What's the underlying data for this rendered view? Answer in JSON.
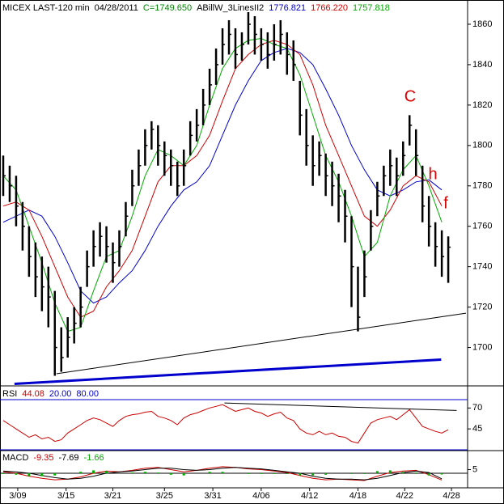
{
  "chart_data": [
    {
      "type": "ohlc",
      "title": "MICEX LAST-120 min",
      "subtitle": "04/28/2011",
      "last_label": "C=1749.650",
      "last_color": "#008800",
      "indicator": "ABillW_3LinesII2",
      "color": "#000000",
      "x": [
        0,
        1,
        2,
        3,
        4,
        5,
        6,
        7,
        8,
        9,
        10,
        11,
        12,
        13,
        14,
        15,
        16,
        17,
        18,
        19,
        20,
        21,
        22,
        23,
        24,
        25,
        26,
        27,
        28,
        29,
        30,
        31,
        32,
        33,
        34,
        35,
        36,
        37,
        38,
        39,
        40,
        41,
        42,
        43,
        44,
        45,
        46,
        47,
        48,
        49,
        50,
        51,
        52,
        53,
        54,
        55,
        56,
        57,
        58,
        59,
        60,
        61,
        62,
        63,
        64,
        65,
        66,
        67,
        68,
        69
      ],
      "high": [
        1795,
        1790,
        1785,
        1772,
        1760,
        1752,
        1745,
        1740,
        1728,
        1710,
        1715,
        1720,
        1730,
        1748,
        1758,
        1762,
        1760,
        1752,
        1758,
        1772,
        1788,
        1798,
        1808,
        1812,
        1810,
        1802,
        1798,
        1792,
        1798,
        1812,
        1818,
        1828,
        1838,
        1848,
        1858,
        1862,
        1858,
        1856,
        1866,
        1864,
        1858,
        1856,
        1860,
        1862,
        1856,
        1852,
        1832,
        1818,
        1805,
        1802,
        1796,
        1792,
        1786,
        1778,
        1765,
        1740,
        1748,
        1768,
        1782,
        1790,
        1798,
        1794,
        1802,
        1815,
        1808,
        1790,
        1775,
        1762,
        1758,
        1755
      ],
      "low": [
        1775,
        1772,
        1760,
        1748,
        1735,
        1725,
        1718,
        1710,
        1686,
        1688,
        1695,
        1702,
        1710,
        1730,
        1740,
        1745,
        1742,
        1732,
        1740,
        1755,
        1770,
        1780,
        1790,
        1798,
        1790,
        1785,
        1780,
        1775,
        1780,
        1795,
        1802,
        1810,
        1820,
        1830,
        1840,
        1845,
        1838,
        1842,
        1850,
        1845,
        1842,
        1838,
        1842,
        1845,
        1835,
        1832,
        1805,
        1790,
        1780,
        1785,
        1775,
        1770,
        1762,
        1752,
        1720,
        1708,
        1725,
        1748,
        1765,
        1775,
        1780,
        1775,
        1785,
        1800,
        1785,
        1762,
        1750,
        1740,
        1735,
        1732
      ],
      "values": [
        1785,
        1780,
        1770,
        1760,
        1745,
        1735,
        1730,
        1725,
        1700,
        1695,
        1705,
        1712,
        1720,
        1740,
        1750,
        1755,
        1750,
        1742,
        1750,
        1765,
        1780,
        1790,
        1800,
        1808,
        1800,
        1795,
        1790,
        1780,
        1790,
        1805,
        1810,
        1820,
        1830,
        1840,
        1850,
        1855,
        1845,
        1850,
        1860,
        1855,
        1850,
        1845,
        1850,
        1855,
        1845,
        1840,
        1815,
        1800,
        1790,
        1795,
        1785,
        1780,
        1775,
        1765,
        1740,
        1715,
        1735,
        1760,
        1775,
        1785,
        1790,
        1785,
        1795,
        1810,
        1795,
        1770,
        1760,
        1750,
        1745,
        1749.65
      ],
      "series": [
        {
          "name": "1776.821",
          "color": "#0000cc",
          "x": [
            0,
            2,
            4,
            6,
            8,
            10,
            12,
            14,
            16,
            18,
            20,
            22,
            24,
            26,
            28,
            30,
            32,
            34,
            36,
            38,
            40,
            42,
            44,
            46,
            48,
            50,
            52,
            54,
            56,
            58,
            60,
            62,
            64,
            66,
            68
          ],
          "values": [
            1762,
            1765,
            1768,
            1765,
            1755,
            1742,
            1728,
            1722,
            1725,
            1732,
            1738,
            1748,
            1760,
            1770,
            1778,
            1782,
            1790,
            1805,
            1820,
            1832,
            1842,
            1846,
            1848,
            1846,
            1840,
            1828,
            1815,
            1800,
            1788,
            1778,
            1775,
            1778,
            1782,
            1783,
            1778
          ]
        },
        {
          "name": "1766.220",
          "color": "#cc0000",
          "x": [
            0,
            2,
            4,
            6,
            8,
            10,
            12,
            14,
            16,
            18,
            20,
            22,
            24,
            26,
            28,
            30,
            32,
            34,
            36,
            38,
            40,
            42,
            44,
            46,
            48,
            50,
            52,
            54,
            56,
            58,
            60,
            62,
            64,
            66,
            68
          ],
          "values": [
            1770,
            1772,
            1768,
            1755,
            1740,
            1725,
            1715,
            1718,
            1730,
            1738,
            1748,
            1765,
            1782,
            1790,
            1790,
            1795,
            1805,
            1822,
            1838,
            1845,
            1850,
            1852,
            1850,
            1845,
            1830,
            1810,
            1795,
            1780,
            1765,
            1760,
            1768,
            1780,
            1785,
            1782,
            1770
          ]
        },
        {
          "name": "1757.818",
          "color": "#00aa00",
          "x": [
            0,
            2,
            4,
            6,
            8,
            10,
            12,
            14,
            16,
            18,
            20,
            22,
            24,
            26,
            28,
            30,
            32,
            34,
            36,
            38,
            40,
            42,
            44,
            46,
            48,
            50,
            52,
            54,
            56,
            58,
            60,
            62,
            64,
            66,
            68
          ],
          "values": [
            1785,
            1778,
            1760,
            1742,
            1722,
            1708,
            1710,
            1728,
            1745,
            1748,
            1765,
            1785,
            1798,
            1795,
            1790,
            1800,
            1820,
            1838,
            1848,
            1852,
            1853,
            1850,
            1848,
            1835,
            1815,
            1795,
            1782,
            1765,
            1745,
            1752,
            1775,
            1788,
            1795,
            1780,
            1762
          ]
        }
      ],
      "trendlines": [
        {
          "color": "#000000",
          "width": 1,
          "x": [
            8.25,
            71.75
          ],
          "values": [
            1687,
            1717
          ]
        },
        {
          "color": "#0000cc",
          "width": 3,
          "x": [
            1.75,
            67.9
          ],
          "values": [
            1682,
            1694
          ]
        }
      ],
      "annotations": [
        "C",
        "h",
        "f"
      ],
      "annotation_color": "#dd0000",
      "xlim": [
        -0.5,
        72
      ],
      "ylim": [
        1681,
        1872
      ],
      "yticks": [
        1700,
        1720,
        1740,
        1760,
        1780,
        1800,
        1820,
        1840,
        1860
      ]
    },
    {
      "type": "line",
      "title": "RSI",
      "series": [
        {
          "name": "44.08",
          "color": "#cc0000",
          "x": [
            0,
            1,
            2,
            3,
            4,
            5,
            6,
            7,
            8,
            9,
            10,
            11,
            12,
            13,
            14,
            15,
            16,
            17,
            18,
            19,
            20,
            21,
            22,
            23,
            24,
            25,
            26,
            27,
            28,
            29,
            30,
            31,
            32,
            33,
            34,
            35,
            36,
            37,
            38,
            39,
            40,
            41,
            42,
            43,
            44,
            45,
            46,
            47,
            48,
            49,
            50,
            51,
            52,
            53,
            54,
            55,
            56,
            57,
            58,
            59,
            60,
            61,
            62,
            63,
            64,
            65,
            66,
            67,
            68,
            69
          ],
          "values": [
            55,
            50,
            45,
            40,
            35,
            38,
            33,
            35,
            30,
            32,
            40,
            45,
            50,
            55,
            58,
            56,
            52,
            48,
            55,
            60,
            62,
            63,
            65,
            66,
            60,
            58,
            55,
            50,
            58,
            62,
            64,
            67,
            70,
            72,
            74,
            70,
            66,
            68,
            70,
            66,
            64,
            60,
            63,
            65,
            58,
            55,
            45,
            40,
            38,
            42,
            38,
            40,
            36,
            35,
            30,
            28,
            40,
            52,
            56,
            58,
            60,
            56,
            62,
            68,
            58,
            48,
            45,
            42,
            40,
            44
          ]
        }
      ],
      "levels": [
        {
          "value": 20,
          "label": "20.00"
        },
        {
          "value": 80,
          "label": "80.00"
        }
      ],
      "level_color": "#0000cc",
      "trendlines": [
        {
          "color": "#000000",
          "width": 1,
          "x": [
            34.3,
            70.3
          ],
          "values": [
            76,
            67
          ]
        }
      ],
      "xlim": [
        -0.5,
        72
      ],
      "ylim": [
        19,
        95.5
      ],
      "yticks": [
        45,
        70
      ]
    },
    {
      "type": "macd",
      "title": "MACD",
      "series": [
        {
          "name": "-9.35",
          "color": "#cc0000",
          "x": [
            0,
            2,
            4,
            6,
            8,
            10,
            12,
            14,
            16,
            18,
            20,
            22,
            24,
            26,
            28,
            30,
            32,
            34,
            36,
            38,
            40,
            42,
            44,
            46,
            48,
            50,
            52,
            54,
            56,
            58,
            60,
            62,
            64,
            66,
            68
          ],
          "values": [
            2,
            0,
            -4,
            -7,
            -9,
            -8,
            -5,
            0,
            3,
            2,
            4,
            7,
            8,
            5,
            2,
            4,
            7,
            9,
            8,
            6,
            5,
            3,
            1,
            -3,
            -7,
            -9,
            -8,
            -9,
            -10,
            -4,
            1,
            3,
            4,
            -2,
            -9.35
          ]
        },
        {
          "name": "-7.69",
          "color": "#000000",
          "x": [
            0,
            2,
            4,
            6,
            8,
            10,
            12,
            14,
            16,
            18,
            20,
            22,
            24,
            26,
            28,
            30,
            32,
            34,
            36,
            38,
            40,
            42,
            44,
            46,
            48,
            50,
            52,
            54,
            56,
            58,
            60,
            62,
            64,
            66,
            68
          ],
          "values": [
            3,
            2,
            0,
            -3,
            -6,
            -8,
            -7,
            -4,
            0,
            2,
            3,
            5,
            7,
            7,
            5,
            4,
            5,
            7,
            8,
            7,
            6,
            4,
            2,
            0,
            -4,
            -7,
            -8,
            -8,
            -9,
            -7,
            -3,
            1,
            3,
            1,
            -7.69
          ]
        },
        {
          "name": "-1.66",
          "color": "#00aa00",
          "kind": "bar",
          "x": [
            0,
            2,
            4,
            6,
            8,
            10,
            12,
            14,
            16,
            18,
            20,
            22,
            24,
            26,
            28,
            30,
            32,
            34,
            36,
            38,
            40,
            42,
            44,
            46,
            48,
            50,
            52,
            54,
            56,
            58,
            60,
            62,
            64,
            66,
            68
          ],
          "values": [
            -1,
            -2,
            -4,
            -4,
            -3,
            0,
            2,
            4,
            3,
            0,
            1,
            2,
            1,
            -2,
            -3,
            0,
            2,
            2,
            0,
            -1,
            -1,
            -1,
            -1,
            -3,
            -3,
            -2,
            0,
            -1,
            -1,
            3,
            4,
            2,
            1,
            -3,
            -1.66
          ]
        }
      ],
      "xlim": [
        -0.5,
        72
      ],
      "ylim": [
        -20,
        30
      ],
      "yticks": [
        5
      ],
      "xticks": [
        {
          "value": 2.25,
          "label": "3/09"
        },
        {
          "value": 9.75,
          "label": "3/15"
        },
        {
          "value": 17,
          "label": "3/21"
        },
        {
          "value": 25,
          "label": "3/25"
        },
        {
          "value": 32.5,
          "label": "3/31"
        },
        {
          "value": 40,
          "label": "4/06"
        },
        {
          "value": 47.5,
          "label": "4/12"
        },
        {
          "value": 55,
          "label": "4/18"
        },
        {
          "value": 62.25,
          "label": "4/22"
        },
        {
          "value": 69.5,
          "label": "4/28"
        }
      ]
    }
  ]
}
